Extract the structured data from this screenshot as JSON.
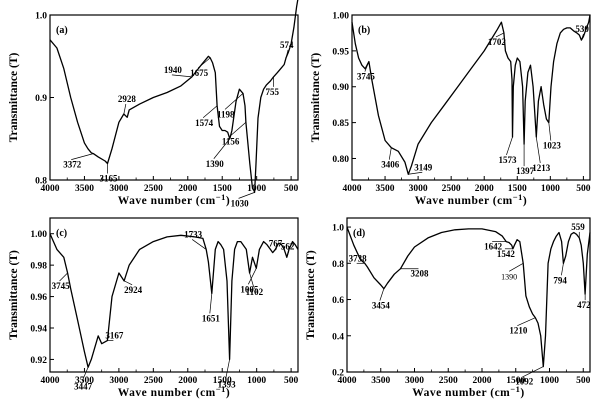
{
  "chart_data": [
    {
      "panel_label": "(a)",
      "type": "line",
      "xlabel": "Wave number (cm⁻¹)",
      "ylabel": "Transmittance (T)",
      "xlim": [
        4000,
        400
      ],
      "ylim": [
        0.8,
        1.0
      ],
      "yticks": [
        0.8,
        0.9,
        1.0
      ],
      "ytick_labels": [
        "0.8",
        "0.9",
        "1.0"
      ],
      "xticks": [
        4000,
        3500,
        3000,
        2500,
        2000,
        1500,
        1000,
        500
      ],
      "x": [
        4000,
        3900,
        3800,
        3700,
        3600,
        3500,
        3450,
        3400,
        3372,
        3300,
        3200,
        3165,
        3100,
        3000,
        2928,
        2880,
        2850,
        2700,
        2500,
        2300,
        2100,
        1940,
        1800,
        1700,
        1675,
        1640,
        1600,
        1574,
        1540,
        1500,
        1460,
        1420,
        1390,
        1360,
        1300,
        1250,
        1198,
        1170,
        1156,
        1100,
        1060,
        1040,
        1030,
        1010,
        980,
        940,
        900,
        860,
        800,
        755,
        700,
        650,
        600,
        574,
        540,
        500,
        460,
        420,
        400
      ],
      "y": [
        0.97,
        0.96,
        0.935,
        0.9,
        0.87,
        0.845,
        0.838,
        0.833,
        0.832,
        0.828,
        0.823,
        0.82,
        0.838,
        0.87,
        0.88,
        0.876,
        0.885,
        0.892,
        0.9,
        0.906,
        0.914,
        0.925,
        0.94,
        0.95,
        0.948,
        0.942,
        0.93,
        0.89,
        0.865,
        0.86,
        0.86,
        0.858,
        0.85,
        0.86,
        0.895,
        0.91,
        0.905,
        0.89,
        0.87,
        0.82,
        0.79,
        0.788,
        0.785,
        0.82,
        0.875,
        0.9,
        0.91,
        0.915,
        0.92,
        0.925,
        0.93,
        0.935,
        0.94,
        0.948,
        0.955,
        0.965,
        0.985,
        1.01,
        1.02
      ],
      "annotations": [
        {
          "text": "3372",
          "x": 3372,
          "y": 0.832,
          "style": "bold"
        },
        {
          "text": "3165",
          "x": 3165,
          "y": 0.82,
          "style": "bold"
        },
        {
          "text": "2928",
          "x": 2928,
          "y": 0.88,
          "style": "bold"
        },
        {
          "text": "1940",
          "x": 1940,
          "y": 0.925,
          "style": "bold"
        },
        {
          "text": "1675",
          "x": 1675,
          "y": 0.948,
          "style": "bold"
        },
        {
          "text": "1574",
          "x": 1574,
          "y": 0.89,
          "style": "bold"
        },
        {
          "text": "1390",
          "x": 1390,
          "y": 0.85,
          "style": "bold"
        },
        {
          "text": "1198",
          "x": 1198,
          "y": 0.905,
          "style": "bold"
        },
        {
          "text": "1156",
          "x": 1156,
          "y": 0.87,
          "style": "bold"
        },
        {
          "text": "1030",
          "x": 1030,
          "y": 0.785,
          "style": "bold"
        },
        {
          "text": "755",
          "x": 755,
          "y": 0.925,
          "style": "bold"
        },
        {
          "text": "574",
          "x": 574,
          "y": 0.948,
          "style": "bold"
        }
      ]
    },
    {
      "panel_label": "(b)",
      "type": "line",
      "xlabel": "Wave number (cm⁻¹)",
      "ylabel": "Transmittance (T)",
      "xlim": [
        4000,
        400
      ],
      "ylim": [
        0.77,
        1.0
      ],
      "yticks": [
        0.8,
        0.85,
        0.9,
        0.95,
        1.0
      ],
      "ytick_labels": [
        "0.80",
        "0.85",
        "0.90",
        "0.95",
        "1.00"
      ],
      "xticks": [
        4000,
        3500,
        3000,
        2500,
        2000,
        1500,
        1000,
        500
      ],
      "x": [
        4000,
        3950,
        3900,
        3850,
        3800,
        3745,
        3700,
        3600,
        3500,
        3406,
        3300,
        3200,
        3149,
        3100,
        3000,
        2800,
        2600,
        2400,
        2200,
        2000,
        1900,
        1800,
        1740,
        1702,
        1680,
        1640,
        1600,
        1580,
        1573,
        1560,
        1530,
        1500,
        1460,
        1420,
        1397,
        1380,
        1340,
        1300,
        1260,
        1213,
        1180,
        1140,
        1100,
        1060,
        1023,
        990,
        950,
        900,
        850,
        800,
        750,
        700,
        650,
        600,
        560,
        530,
        500,
        460,
        420,
        400
      ],
      "y": [
        0.99,
        0.96,
        0.94,
        0.93,
        0.925,
        0.935,
        0.91,
        0.86,
        0.825,
        0.815,
        0.81,
        0.795,
        0.778,
        0.79,
        0.82,
        0.85,
        0.875,
        0.9,
        0.925,
        0.95,
        0.965,
        0.98,
        0.99,
        0.975,
        0.95,
        0.94,
        0.935,
        0.91,
        0.83,
        0.9,
        0.93,
        0.94,
        0.935,
        0.9,
        0.82,
        0.88,
        0.92,
        0.93,
        0.9,
        0.83,
        0.88,
        0.9,
        0.875,
        0.855,
        0.85,
        0.9,
        0.935,
        0.96,
        0.975,
        0.98,
        0.982,
        0.982,
        0.978,
        0.975,
        0.972,
        0.965,
        0.97,
        0.98,
        0.99,
        1.0
      ],
      "annotations": [
        {
          "text": "3745",
          "x": 3745,
          "y": 0.935,
          "style": "bold"
        },
        {
          "text": "3406",
          "x": 3406,
          "y": 0.815,
          "style": "bold"
        },
        {
          "text": "3149",
          "x": 3149,
          "y": 0.778,
          "style": "bold"
        },
        {
          "text": "1702",
          "x": 1702,
          "y": 0.975,
          "style": "bold"
        },
        {
          "text": "1573",
          "x": 1573,
          "y": 0.83,
          "style": "bold"
        },
        {
          "text": "1397",
          "x": 1397,
          "y": 0.82,
          "style": "bold"
        },
        {
          "text": "1213",
          "x": 1213,
          "y": 0.83,
          "style": "bold"
        },
        {
          "text": "1023",
          "x": 1023,
          "y": 0.85,
          "style": "bold"
        },
        {
          "text": "530",
          "x": 530,
          "y": 0.965,
          "style": "bold"
        }
      ]
    },
    {
      "panel_label": "(c)",
      "type": "line",
      "xlabel": "Wave number (cm⁻¹)",
      "ylabel": "Transmittance (T)",
      "xlim": [
        4000,
        400
      ],
      "ylim": [
        0.912,
        1.01
      ],
      "yticks": [
        0.92,
        0.94,
        0.96,
        0.98,
        1.0
      ],
      "ytick_labels": [
        "0.92",
        "0.94",
        "0.96",
        "0.98",
        "1.00"
      ],
      "xticks": [
        4000,
        3500,
        3000,
        2500,
        2000,
        1500,
        1000,
        500
      ],
      "x": [
        4000,
        3900,
        3800,
        3745,
        3700,
        3600,
        3500,
        3447,
        3400,
        3300,
        3250,
        3167,
        3100,
        3000,
        2924,
        2850,
        2700,
        2500,
        2300,
        2100,
        1900,
        1780,
        1733,
        1700,
        1651,
        1600,
        1560,
        1520,
        1480,
        1430,
        1393,
        1360,
        1320,
        1280,
        1230,
        1150,
        1102,
        1060,
        1005,
        960,
        900,
        850,
        800,
        767,
        730,
        680,
        640,
        600,
        562,
        530,
        480,
        440,
        400
      ],
      "y": [
        1.0,
        0.99,
        0.985,
        0.975,
        0.965,
        0.945,
        0.925,
        0.915,
        0.92,
        0.935,
        0.93,
        0.932,
        0.96,
        0.975,
        0.97,
        0.98,
        0.99,
        0.995,
        0.998,
        0.999,
        0.998,
        0.997,
        0.99,
        0.982,
        0.962,
        0.99,
        0.995,
        0.993,
        0.99,
        0.97,
        0.92,
        0.97,
        0.99,
        0.995,
        0.995,
        0.99,
        0.975,
        0.985,
        0.978,
        0.99,
        0.995,
        0.993,
        0.99,
        0.988,
        0.99,
        0.994,
        0.993,
        0.99,
        0.985,
        0.99,
        0.995,
        0.993,
        0.99
      ],
      "annotations": [
        {
          "text": "3745",
          "x": 3745,
          "y": 0.975,
          "style": "bold"
        },
        {
          "text": "3447",
          "x": 3447,
          "y": 0.915,
          "style": "bold"
        },
        {
          "text": "3167",
          "x": 3167,
          "y": 0.932,
          "style": "bold"
        },
        {
          "text": "2924",
          "x": 2924,
          "y": 0.97,
          "style": "bold"
        },
        {
          "text": "1733",
          "x": 1733,
          "y": 0.99,
          "style": "bold"
        },
        {
          "text": "1651",
          "x": 1651,
          "y": 0.962,
          "style": "bold"
        },
        {
          "text": "1393",
          "x": 1393,
          "y": 0.92,
          "style": "bold"
        },
        {
          "text": "1102",
          "x": 1102,
          "y": 0.975,
          "style": "bold"
        },
        {
          "text": "1005",
          "x": 1005,
          "y": 0.978,
          "style": "bold"
        },
        {
          "text": "767",
          "x": 767,
          "y": 0.988,
          "style": "bold"
        },
        {
          "text": "562",
          "x": 562,
          "y": 0.985,
          "style": "bold"
        }
      ]
    },
    {
      "panel_label": "(d)",
      "type": "line",
      "xlabel": "Wave number (cm⁻¹)",
      "ylabel": "Transmittance (T)",
      "xlim": [
        4000,
        400
      ],
      "ylim": [
        0.2,
        1.05
      ],
      "yticks": [
        0.2,
        0.4,
        0.6,
        0.8,
        1.0
      ],
      "ytick_labels": [
        "0.2",
        "0.4",
        "0.6",
        "0.8",
        "1.0"
      ],
      "xticks": [
        4000,
        3500,
        3000,
        2500,
        2000,
        1500,
        1000,
        500
      ],
      "x": [
        4000,
        3900,
        3800,
        3738,
        3700,
        3600,
        3500,
        3454,
        3400,
        3300,
        3208,
        3100,
        3000,
        2800,
        2600,
        2400,
        2200,
        2000,
        1800,
        1700,
        1642,
        1600,
        1560,
        1542,
        1520,
        1480,
        1440,
        1390,
        1350,
        1300,
        1250,
        1210,
        1170,
        1130,
        1092,
        1060,
        1020,
        980,
        940,
        900,
        860,
        820,
        794,
        760,
        720,
        680,
        640,
        600,
        559,
        530,
        500,
        472,
        440,
        400
      ],
      "y": [
        1.0,
        0.9,
        0.82,
        0.8,
        0.78,
        0.72,
        0.68,
        0.66,
        0.69,
        0.74,
        0.77,
        0.84,
        0.89,
        0.94,
        0.97,
        0.985,
        0.99,
        0.99,
        0.975,
        0.95,
        0.92,
        0.915,
        0.9,
        0.88,
        0.9,
        0.93,
        0.92,
        0.8,
        0.62,
        0.56,
        0.52,
        0.5,
        0.47,
        0.4,
        0.23,
        0.4,
        0.8,
        0.88,
        0.92,
        0.95,
        0.97,
        0.92,
        0.8,
        0.84,
        0.92,
        0.96,
        0.97,
        0.96,
        0.94,
        0.9,
        0.8,
        0.63,
        0.85,
        0.97
      ],
      "annotations": [
        {
          "text": "3738",
          "x": 3738,
          "y": 0.8,
          "style": "bold"
        },
        {
          "text": "3454",
          "x": 3454,
          "y": 0.66,
          "style": "bold"
        },
        {
          "text": "3208",
          "x": 3208,
          "y": 0.77,
          "style": "bold"
        },
        {
          "text": "1642",
          "x": 1642,
          "y": 0.92,
          "style": "bold"
        },
        {
          "text": "1542",
          "x": 1542,
          "y": 0.88,
          "style": "bold"
        },
        {
          "text": "1390",
          "x": 1390,
          "y": 0.8,
          "style": "plain"
        },
        {
          "text": "1210",
          "x": 1210,
          "y": 0.5,
          "style": "bold"
        },
        {
          "text": "1092",
          "x": 1092,
          "y": 0.23,
          "style": "bold"
        },
        {
          "text": "794",
          "x": 794,
          "y": 0.8,
          "style": "bold"
        },
        {
          "text": "559",
          "x": 559,
          "y": 0.94,
          "style": "bold"
        },
        {
          "text": "472",
          "x": 472,
          "y": 0.63,
          "style": "bold"
        }
      ]
    }
  ]
}
